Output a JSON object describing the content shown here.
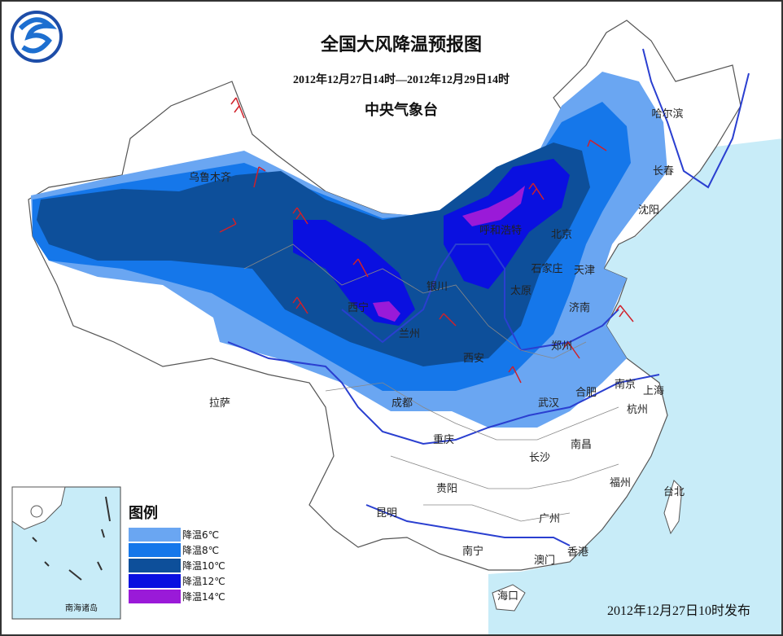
{
  "header": {
    "title": "全国大风降温预报图",
    "period": "2012年12月27日14时—2012年12月29日14时",
    "agency": "中央气象台"
  },
  "cities": [
    "乌鲁木齐",
    "哈尔滨",
    "长春",
    "沈阳",
    "呼和浩特",
    "北京",
    "天津",
    "石家庄",
    "银川",
    "太原",
    "济南",
    "西宁",
    "兰州",
    "郑州",
    "西安",
    "拉萨",
    "成都",
    "南京",
    "上海",
    "合肥",
    "武汉",
    "杭州",
    "重庆",
    "南昌",
    "长沙",
    "贵阳",
    "福州",
    "台北",
    "昆明",
    "广州",
    "南宁",
    "澳门",
    "香港",
    "海口"
  ],
  "legend": {
    "title": "图例",
    "items": [
      {
        "label": "降温6℃",
        "color": "#6aa6f2"
      },
      {
        "label": "降温8℃",
        "color": "#1577ea"
      },
      {
        "label": "降温10℃",
        "color": "#0d4f9a"
      },
      {
        "label": "降温12℃",
        "color": "#0a10e0"
      },
      {
        "label": "降温14℃",
        "color": "#9a1ad8"
      }
    ]
  },
  "inset_label": "南海诸岛",
  "issued": "2012年12月27日10时发布"
}
